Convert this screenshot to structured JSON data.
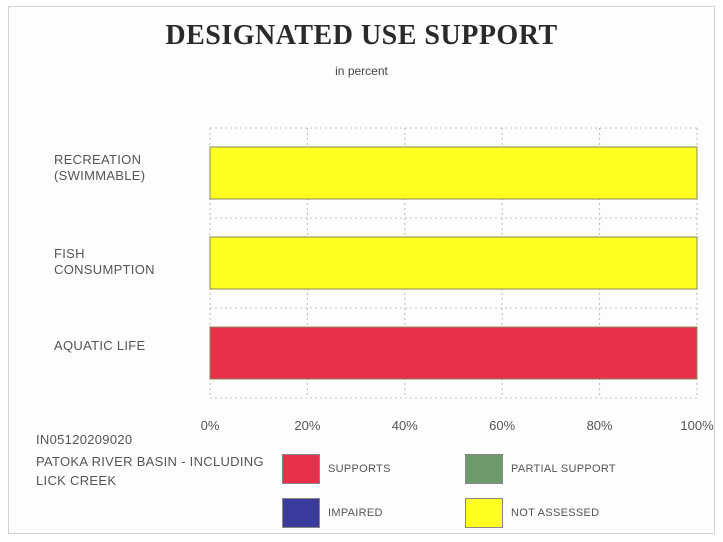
{
  "chart_data": {
    "type": "bar",
    "orientation": "horizontal",
    "title": "DESIGNATED USE SUPPORT",
    "subtitle": "in percent",
    "categories": [
      "RECREATION (SWIMMABLE)",
      "FISH CONSUMPTION",
      "AQUATIC LIFE"
    ],
    "category_lines": [
      [
        "RECREATION",
        "(SWIMMABLE)"
      ],
      [
        "FISH",
        "CONSUMPTION"
      ],
      [
        "AQUATIC LIFE"
      ]
    ],
    "series": [
      {
        "name": "SUPPORTS",
        "color": "#e8304a",
        "values": [
          0,
          0,
          100
        ]
      },
      {
        "name": "PARTIAL SUPPORT",
        "color": "#6e9a6e",
        "values": [
          0,
          0,
          0
        ]
      },
      {
        "name": "IMPAIRED",
        "color": "#3a3a9c",
        "values": [
          0,
          0,
          0
        ]
      },
      {
        "name": "NOT ASSESSED",
        "color": "#ffff22",
        "values": [
          100,
          100,
          0
        ]
      }
    ],
    "xlim": [
      0,
      100
    ],
    "x_ticks": [
      "0%",
      "20%",
      "40%",
      "60%",
      "80%",
      "100%"
    ],
    "grid": true,
    "legend_position": "bottom"
  },
  "basin": {
    "id": "IN05120209020",
    "name": "PATOKA RIVER BASIN - INCLUDING LICK CREEK"
  },
  "legend": [
    {
      "label": "SUPPORTS",
      "color": "#e8304a"
    },
    {
      "label": "PARTIAL SUPPORT",
      "color": "#6e9a6e"
    },
    {
      "label": "IMPAIRED",
      "color": "#3a3a9c"
    },
    {
      "label": "NOT ASSESSED",
      "color": "#ffff22"
    }
  ]
}
